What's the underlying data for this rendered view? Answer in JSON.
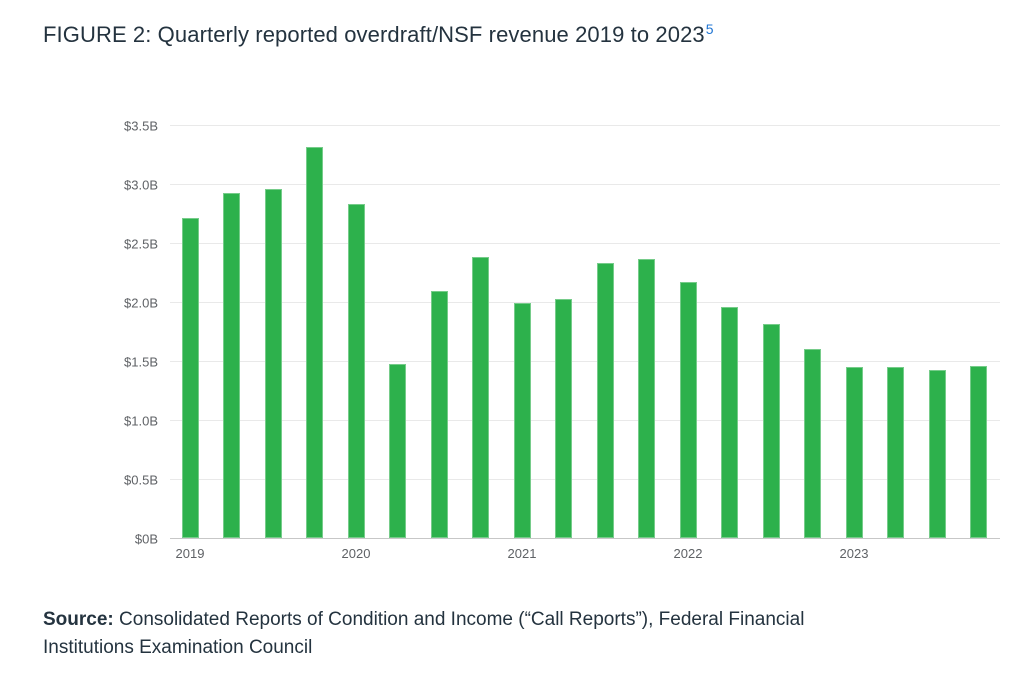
{
  "title": {
    "text": "FIGURE 2: Quarterly reported overdraft/NSF revenue 2019 to 2023",
    "footnote_marker": "5"
  },
  "source": {
    "label": "Source:",
    "text": " Consolidated Reports of Condition and Income (“Call Reports”), Federal Financial Institutions Examination Council"
  },
  "colors": {
    "bar": "#2db14c",
    "title_text": "#24333f",
    "footnote_link": "#2276d3",
    "axis_label": "#5f6266",
    "gridline": "#e9e9e9",
    "baseline": "#c7c7c7",
    "background": "#ffffff"
  },
  "chart_data": {
    "type": "bar",
    "title": "FIGURE 2: Quarterly reported overdraft/NSF revenue 2019 to 2023",
    "unit": "USD billions",
    "categories": [
      "2019 Q1",
      "2019 Q2",
      "2019 Q3",
      "2019 Q4",
      "2020 Q1",
      "2020 Q2",
      "2020 Q3",
      "2020 Q4",
      "2021 Q1",
      "2021 Q2",
      "2021 Q3",
      "2021 Q4",
      "2022 Q1",
      "2022 Q2",
      "2022 Q3",
      "2022 Q4",
      "2023 Q1",
      "2023 Q2",
      "2023 Q3",
      "2023 Q4"
    ],
    "values": [
      2.72,
      2.93,
      2.97,
      3.32,
      2.84,
      1.48,
      2.1,
      2.39,
      2.0,
      2.03,
      2.34,
      2.37,
      2.18,
      1.97,
      1.82,
      1.61,
      1.46,
      1.46,
      1.43,
      1.47
    ],
    "xlabel": "",
    "ylabel": "",
    "ylim": [
      0,
      3.5
    ],
    "grid": true,
    "legend": false,
    "y_ticks": [
      {
        "value": 3.5,
        "label": "$3.5B"
      },
      {
        "value": 3.0,
        "label": "$3.0B"
      },
      {
        "value": 2.5,
        "label": "$2.5B"
      },
      {
        "value": 2.0,
        "label": "$2.0B"
      },
      {
        "value": 1.5,
        "label": "$1.5B"
      },
      {
        "value": 1.0,
        "label": "$1.0B"
      },
      {
        "value": 0.5,
        "label": "$0.5B"
      },
      {
        "value": 0.0,
        "label": "$0B"
      }
    ],
    "x_year_labels": [
      {
        "label": "2019",
        "bar_index": 0
      },
      {
        "label": "2020",
        "bar_index": 4
      },
      {
        "label": "2021",
        "bar_index": 8
      },
      {
        "label": "2022",
        "bar_index": 12
      },
      {
        "label": "2023",
        "bar_index": 16
      }
    ]
  }
}
